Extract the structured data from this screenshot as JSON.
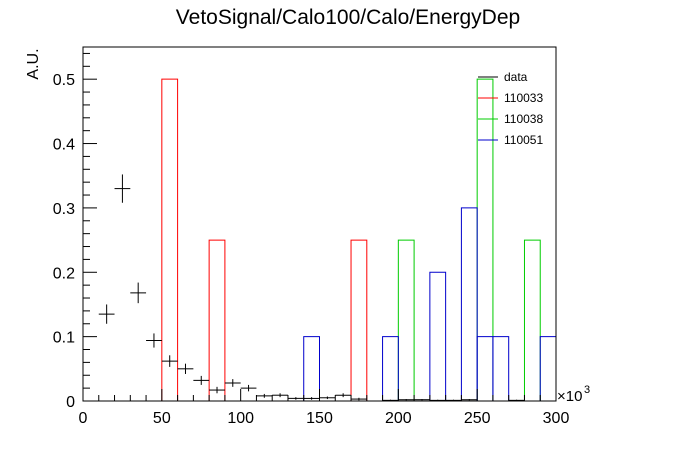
{
  "chart_data": {
    "type": "histogram",
    "title": "VetoSignal/Calo100/Calo/EnergyDep",
    "xlabel": "",
    "ylabel": "A.U.",
    "x_multiplier_label": "×10",
    "x_multiplier_exponent": "3",
    "xlim": [
      0,
      300
    ],
    "ylim": [
      0,
      0.55
    ],
    "x_tick_labels": [
      "0",
      "50",
      "100",
      "150",
      "200",
      "250",
      "300"
    ],
    "y_tick_labels": [
      "0",
      "0.1",
      "0.2",
      "0.3",
      "0.4",
      "0.5"
    ],
    "x_ticks": [
      0,
      50,
      100,
      150,
      200,
      250,
      300
    ],
    "y_ticks": [
      0,
      0.1,
      0.2,
      0.3,
      0.4,
      0.5
    ],
    "legend_position": "top-right",
    "series": [
      {
        "name": "data",
        "kind": "points-with-errors",
        "color": "#000000",
        "bin_width": 10,
        "points": [
          {
            "x": 5,
            "y": 0.0,
            "err": 0.0
          },
          {
            "x": 15,
            "y": 0.135,
            "err": 0.015
          },
          {
            "x": 25,
            "y": 0.33,
            "err": 0.022
          },
          {
            "x": 35,
            "y": 0.168,
            "err": 0.016
          },
          {
            "x": 45,
            "y": 0.094,
            "err": 0.011
          },
          {
            "x": 55,
            "y": 0.062,
            "err": 0.009
          },
          {
            "x": 65,
            "y": 0.05,
            "err": 0.008
          },
          {
            "x": 75,
            "y": 0.032,
            "err": 0.007
          },
          {
            "x": 85,
            "y": 0.017,
            "err": 0.005
          },
          {
            "x": 95,
            "y": 0.028,
            "err": 0.006
          },
          {
            "x": 105,
            "y": 0.02,
            "err": 0.005
          },
          {
            "x": 115,
            "y": 0.008,
            "err": 0.003
          },
          {
            "x": 125,
            "y": 0.009,
            "err": 0.003
          },
          {
            "x": 135,
            "y": 0.004,
            "err": 0.002
          },
          {
            "x": 145,
            "y": 0.004,
            "err": 0.002
          },
          {
            "x": 155,
            "y": 0.005,
            "err": 0.002
          },
          {
            "x": 165,
            "y": 0.009,
            "err": 0.003
          },
          {
            "x": 175,
            "y": 0.003,
            "err": 0.002
          },
          {
            "x": 185,
            "y": 0.0,
            "err": 0.0
          },
          {
            "x": 195,
            "y": 0.001,
            "err": 0.001
          },
          {
            "x": 205,
            "y": 0.002,
            "err": 0.001
          },
          {
            "x": 215,
            "y": 0.002,
            "err": 0.001
          },
          {
            "x": 225,
            "y": 0.001,
            "err": 0.001
          },
          {
            "x": 235,
            "y": 0.001,
            "err": 0.001
          },
          {
            "x": 245,
            "y": 0.002,
            "err": 0.001
          },
          {
            "x": 255,
            "y": 0.0,
            "err": 0.0
          },
          {
            "x": 265,
            "y": 0.0,
            "err": 0.0
          },
          {
            "x": 275,
            "y": 0.001,
            "err": 0.001
          },
          {
            "x": 285,
            "y": 0.0,
            "err": 0.0
          },
          {
            "x": 295,
            "y": 0.0,
            "err": 0.0
          }
        ]
      },
      {
        "name": "110033",
        "kind": "histogram-outline",
        "color": "#ff0000",
        "bins": [
          {
            "x0": 50,
            "x1": 60,
            "y": 0.5
          },
          {
            "x0": 80,
            "x1": 90,
            "y": 0.25
          },
          {
            "x0": 170,
            "x1": 180,
            "y": 0.25
          }
        ]
      },
      {
        "name": "110038",
        "kind": "histogram-outline",
        "color": "#00cc00",
        "bins": [
          {
            "x0": 200,
            "x1": 210,
            "y": 0.25
          },
          {
            "x0": 250,
            "x1": 260,
            "y": 0.5
          },
          {
            "x0": 280,
            "x1": 290,
            "y": 0.25
          }
        ]
      },
      {
        "name": "110051",
        "kind": "histogram-outline",
        "color": "#0000cc",
        "bins": [
          {
            "x0": 140,
            "x1": 150,
            "y": 0.1
          },
          {
            "x0": 190,
            "x1": 200,
            "y": 0.1
          },
          {
            "x0": 220,
            "x1": 230,
            "y": 0.2
          },
          {
            "x0": 240,
            "x1": 250,
            "y": 0.3
          },
          {
            "x0": 250,
            "x1": 260,
            "y": 0.1
          },
          {
            "x0": 260,
            "x1": 270,
            "y": 0.1
          },
          {
            "x0": 290,
            "x1": 300,
            "y": 0.1
          }
        ]
      }
    ]
  }
}
